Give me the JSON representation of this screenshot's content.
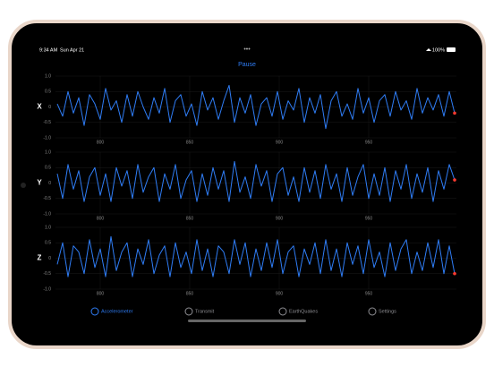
{
  "status_bar": {
    "time": "9:34 AM",
    "date": "Sun Apr 21",
    "battery": "100%"
  },
  "pause_button": "Pause",
  "chart_data": [
    {
      "type": "line",
      "ylabel": "X",
      "color": "#2f7df6",
      "end_marker_color": "#ff3b30",
      "grid": true,
      "xlim": [
        775,
        999
      ],
      "xticks": [
        800,
        850,
        900,
        950
      ],
      "ylim": [
        -1,
        1
      ],
      "yticks": [
        {
          "value": 1,
          "label": "1.0"
        },
        0.5,
        0,
        -0.5,
        {
          "value": -1,
          "label": "-1.0"
        }
      ],
      "x": [
        776,
        779,
        782,
        785,
        788,
        791,
        794,
        797,
        800,
        803,
        806,
        809,
        812,
        815,
        818,
        821,
        824,
        827,
        830,
        833,
        836,
        839,
        842,
        845,
        848,
        851,
        854,
        857,
        860,
        863,
        866,
        869,
        872,
        875,
        878,
        881,
        884,
        887,
        890,
        893,
        896,
        899,
        902,
        905,
        908,
        911,
        914,
        917,
        920,
        923,
        926,
        929,
        932,
        935,
        938,
        941,
        944,
        947,
        950,
        953,
        956,
        959,
        962,
        965,
        968,
        971,
        974,
        977,
        980,
        983,
        986,
        989,
        992,
        995,
        998
      ],
      "values": [
        0.1,
        -0.3,
        0.5,
        -0.2,
        0.3,
        -0.6,
        0.4,
        0.1,
        -0.4,
        0.6,
        -0.1,
        0.2,
        -0.5,
        0.4,
        -0.3,
        0.5,
        0.0,
        -0.4,
        0.3,
        -0.2,
        0.6,
        -0.5,
        0.2,
        0.4,
        -0.3,
        0.1,
        -0.6,
        0.5,
        -0.1,
        0.3,
        -0.4,
        0.2,
        0.7,
        -0.5,
        0.3,
        -0.2,
        0.4,
        -0.6,
        0.1,
        0.3,
        -0.3,
        0.5,
        -0.4,
        0.2,
        -0.1,
        0.6,
        -0.5,
        0.3,
        -0.2,
        0.4,
        -0.7,
        0.2,
        0.5,
        -0.3,
        0.1,
        -0.4,
        0.6,
        -0.2,
        0.3,
        -0.5,
        0.2,
        0.4,
        -0.3,
        0.5,
        -0.1,
        0.2,
        -0.4,
        0.6,
        -0.2,
        0.3,
        -0.1,
        0.4,
        -0.3,
        0.5,
        -0.2
      ]
    },
    {
      "type": "line",
      "ylabel": "Y",
      "color": "#2f7df6",
      "end_marker_color": "#ff3b30",
      "grid": true,
      "xlim": [
        775,
        999
      ],
      "xticks": [
        800,
        850,
        900,
        950
      ],
      "ylim": [
        -1,
        1
      ],
      "yticks": [
        {
          "value": 1,
          "label": "1.0"
        },
        0.5,
        0,
        -0.5,
        {
          "value": -1,
          "label": "-1.0"
        }
      ],
      "x": [
        776,
        779,
        782,
        785,
        788,
        791,
        794,
        797,
        800,
        803,
        806,
        809,
        812,
        815,
        818,
        821,
        824,
        827,
        830,
        833,
        836,
        839,
        842,
        845,
        848,
        851,
        854,
        857,
        860,
        863,
        866,
        869,
        872,
        875,
        878,
        881,
        884,
        887,
        890,
        893,
        896,
        899,
        902,
        905,
        908,
        911,
        914,
        917,
        920,
        923,
        926,
        929,
        932,
        935,
        938,
        941,
        944,
        947,
        950,
        953,
        956,
        959,
        962,
        965,
        968,
        971,
        974,
        977,
        980,
        983,
        986,
        989,
        992,
        995,
        998
      ],
      "values": [
        0.3,
        -0.5,
        0.6,
        -0.2,
        0.4,
        -0.6,
        0.2,
        0.5,
        -0.4,
        0.3,
        -0.6,
        0.5,
        -0.1,
        0.4,
        -0.5,
        0.6,
        -0.3,
        0.2,
        0.5,
        -0.6,
        0.3,
        -0.2,
        0.6,
        -0.5,
        0.1,
        0.4,
        -0.6,
        0.3,
        -0.4,
        0.5,
        -0.2,
        0.4,
        -0.6,
        0.7,
        -0.3,
        0.2,
        -0.5,
        0.6,
        -0.1,
        0.4,
        -0.6,
        0.3,
        0.5,
        -0.4,
        0.2,
        -0.6,
        0.5,
        -0.3,
        0.4,
        -0.5,
        0.6,
        -0.2,
        0.3,
        -0.6,
        0.5,
        -0.4,
        0.2,
        0.6,
        -0.5,
        0.3,
        -0.4,
        0.5,
        -0.6,
        0.4,
        -0.2,
        0.6,
        -0.5,
        0.3,
        -0.3,
        0.5,
        -0.6,
        0.4,
        -0.2,
        0.6,
        0.1
      ]
    },
    {
      "type": "line",
      "ylabel": "Z",
      "color": "#2f7df6",
      "end_marker_color": "#ff3b30",
      "grid": true,
      "xlim": [
        775,
        999
      ],
      "xticks": [
        800,
        850,
        900,
        950
      ],
      "ylim": [
        -1,
        1
      ],
      "yticks": [
        {
          "value": 1,
          "label": "1.0"
        },
        0.5,
        0,
        -0.5,
        {
          "value": -1,
          "label": "-1.0"
        }
      ],
      "x": [
        776,
        779,
        782,
        785,
        788,
        791,
        794,
        797,
        800,
        803,
        806,
        809,
        812,
        815,
        818,
        821,
        824,
        827,
        830,
        833,
        836,
        839,
        842,
        845,
        848,
        851,
        854,
        857,
        860,
        863,
        866,
        869,
        872,
        875,
        878,
        881,
        884,
        887,
        890,
        893,
        896,
        899,
        902,
        905,
        908,
        911,
        914,
        917,
        920,
        923,
        926,
        929,
        932,
        935,
        938,
        941,
        944,
        947,
        950,
        953,
        956,
        959,
        962,
        965,
        968,
        971,
        974,
        977,
        980,
        983,
        986,
        989,
        992,
        995,
        998
      ],
      "values": [
        -0.2,
        0.5,
        -0.6,
        0.4,
        0.2,
        -0.5,
        0.6,
        -0.3,
        0.3,
        -0.6,
        0.7,
        -0.4,
        0.2,
        0.5,
        -0.6,
        0.3,
        -0.2,
        0.6,
        -0.5,
        0.1,
        0.4,
        -0.6,
        0.5,
        -0.3,
        0.2,
        -0.5,
        0.6,
        -0.4,
        0.3,
        -0.6,
        0.4,
        0.2,
        -0.5,
        0.6,
        -0.2,
        0.5,
        -0.6,
        0.3,
        -0.4,
        0.5,
        -0.3,
        0.6,
        -0.5,
        0.2,
        0.4,
        -0.6,
        0.3,
        -0.2,
        0.5,
        -0.5,
        0.6,
        -0.4,
        0.3,
        -0.6,
        0.5,
        -0.2,
        0.4,
        -0.5,
        0.6,
        -0.3,
        0.2,
        -0.6,
        0.5,
        -0.4,
        0.3,
        0.6,
        -0.5,
        0.2,
        -0.4,
        0.5,
        -0.3,
        0.6,
        -0.5,
        0.4,
        -0.5
      ]
    }
  ],
  "tab_bar": {
    "tabs": [
      "Accelerometer",
      "Transmit",
      "EarthQuakes",
      "Settings"
    ]
  }
}
